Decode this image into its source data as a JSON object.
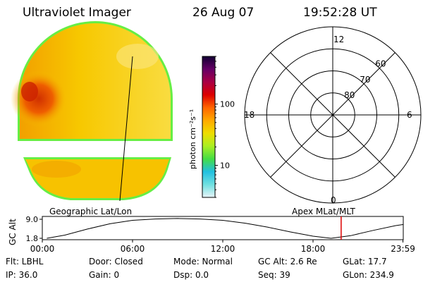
{
  "header": {
    "instrument": "Ultraviolet Imager",
    "date": "26 Aug 07",
    "time": "19:52:28 UT"
  },
  "colors": {
    "background": "#ffffff",
    "ink": "#000000",
    "image_base": "#f6c400",
    "image_rim": "#66ee44",
    "hotspot": "#cc2200",
    "time_marker": "#dd0000"
  },
  "colorbar": {
    "unit_label": "photon cm⁻²s⁻¹",
    "ticks": [
      "100",
      "10"
    ],
    "tick_values": [
      100,
      10
    ],
    "range": [
      3,
      600
    ],
    "scale": "log",
    "gradient": [
      "#e8f4f8",
      "#70e0e0",
      "#22c0e0",
      "#44dd44",
      "#aaee22",
      "#eedd00",
      "#ffaa00",
      "#ff6600",
      "#dd0000",
      "#aa0044",
      "#660066",
      "#110033"
    ]
  },
  "labels": {
    "geographic": "Geographic Lat/Lon",
    "apex": "Apex MLat/MLT"
  },
  "polar": {
    "mlt": {
      "top": "12",
      "bottom": "0",
      "left": "18",
      "right": "6"
    },
    "lat_rings": [
      "60",
      "70",
      "80"
    ],
    "lat_values": [
      60,
      70,
      80
    ]
  },
  "timeline": {
    "ylabel": "GC Alt",
    "yticks": [
      "9.0",
      "1.8"
    ],
    "yrange": [
      1.8,
      9.0
    ],
    "xticks": [
      "00:00",
      "06:00",
      "12:00",
      "18:00",
      "23:59"
    ],
    "x_hours": [
      0,
      6,
      12,
      18,
      23.98
    ],
    "altitude_curve": [
      [
        0.3,
        1.8
      ],
      [
        1.5,
        3.0
      ],
      [
        3,
        5.3
      ],
      [
        4.5,
        7.3
      ],
      [
        6,
        8.6
      ],
      [
        7.5,
        9.1
      ],
      [
        9,
        9.3
      ],
      [
        10.5,
        9.1
      ],
      [
        12,
        8.6
      ],
      [
        13.5,
        7.5
      ],
      [
        15,
        6.0
      ],
      [
        16.5,
        4.2
      ],
      [
        18,
        2.6
      ],
      [
        19.2,
        1.8
      ],
      [
        20.5,
        2.8
      ],
      [
        22,
        4.8
      ],
      [
        23.5,
        6.6
      ],
      [
        23.98,
        7.0
      ]
    ],
    "marker_hour": 19.87
  },
  "status": {
    "flt": "Flt: LBHL",
    "ip": "IP: 36.0",
    "door": "Door: Closed",
    "gain": "Gain:  0",
    "mode": "Mode: Normal",
    "dsp": "Dsp:     0.0",
    "gcalt": "GC Alt: 2.6 Re",
    "seq": "Seq: 39",
    "glat": "GLat:  17.7",
    "glon": "GLon: 234.9"
  }
}
